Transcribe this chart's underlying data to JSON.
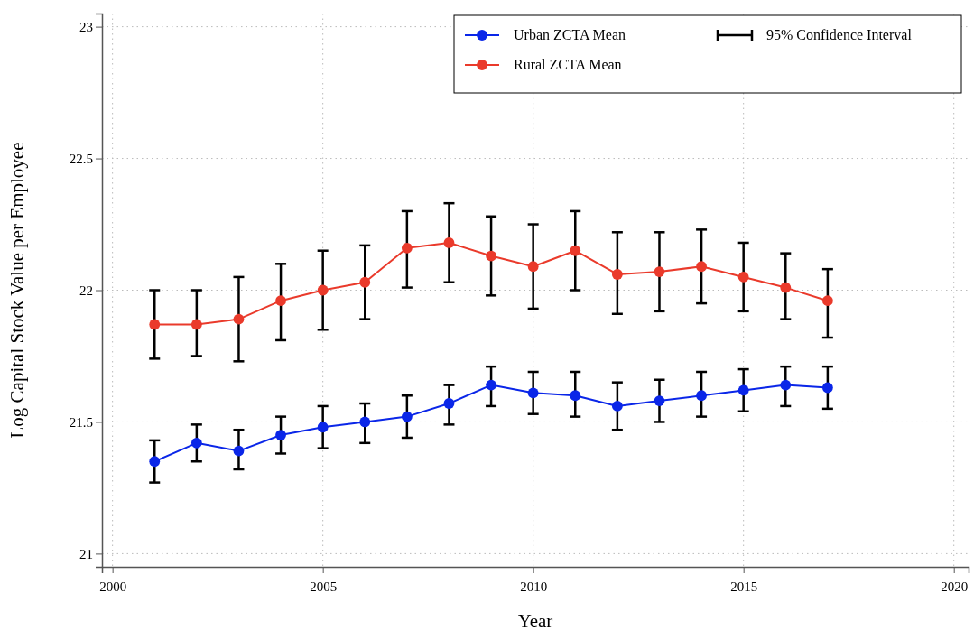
{
  "chart_data": {
    "type": "line",
    "xlabel": "Year",
    "ylabel": "Log Capital Stock Value per Employee",
    "x": [
      2001,
      2002,
      2003,
      2004,
      2005,
      2006,
      2007,
      2008,
      2009,
      2010,
      2011,
      2012,
      2013,
      2014,
      2015,
      2016,
      2017
    ],
    "series": [
      {
        "name": "Urban ZCTA Mean",
        "color": "#0a26e8",
        "values": [
          21.35,
          21.42,
          21.39,
          21.45,
          21.48,
          21.5,
          21.52,
          21.57,
          21.64,
          21.61,
          21.6,
          21.56,
          21.58,
          21.6,
          21.62,
          21.64,
          21.63
        ],
        "errors": [
          [
            21.27,
            21.43
          ],
          [
            21.35,
            21.49
          ],
          [
            21.32,
            21.47
          ],
          [
            21.38,
            21.52
          ],
          [
            21.4,
            21.56
          ],
          [
            21.42,
            21.57
          ],
          [
            21.44,
            21.6
          ],
          [
            21.49,
            21.64
          ],
          [
            21.56,
            21.71
          ],
          [
            21.53,
            21.69
          ],
          [
            21.52,
            21.69
          ],
          [
            21.47,
            21.65
          ],
          [
            21.5,
            21.66
          ],
          [
            21.52,
            21.69
          ],
          [
            21.54,
            21.7
          ],
          [
            21.56,
            21.71
          ],
          [
            21.55,
            21.71
          ]
        ]
      },
      {
        "name": "Rural ZCTA Mean",
        "color": "#ea3a2b",
        "values": [
          21.87,
          21.87,
          21.89,
          21.96,
          22.0,
          22.03,
          22.16,
          22.18,
          22.13,
          22.09,
          22.15,
          22.06,
          22.07,
          22.09,
          22.05,
          22.01,
          21.96
        ],
        "errors": [
          [
            21.74,
            22.0
          ],
          [
            21.75,
            22.0
          ],
          [
            21.73,
            22.05
          ],
          [
            21.81,
            22.1
          ],
          [
            21.85,
            22.15
          ],
          [
            21.89,
            22.17
          ],
          [
            22.01,
            22.3
          ],
          [
            22.03,
            22.33
          ],
          [
            21.98,
            22.28
          ],
          [
            21.93,
            22.25
          ],
          [
            22.0,
            22.3
          ],
          [
            21.91,
            22.22
          ],
          [
            21.92,
            22.22
          ],
          [
            21.95,
            22.23
          ],
          [
            21.92,
            22.18
          ],
          [
            21.89,
            22.14
          ],
          [
            21.82,
            22.08
          ]
        ]
      }
    ],
    "annotations": [
      "95% Confidence Interval"
    ],
    "xlim": [
      1999.75,
      2020.35
    ],
    "ylim": [
      20.95,
      23.05
    ],
    "xticks": [
      2000,
      2005,
      2010,
      2015,
      2020
    ],
    "yticks": [
      21,
      21.5,
      22,
      22.5,
      23
    ],
    "grid": true,
    "legend": "top right",
    "marker": "circle",
    "line_style": "solid"
  }
}
